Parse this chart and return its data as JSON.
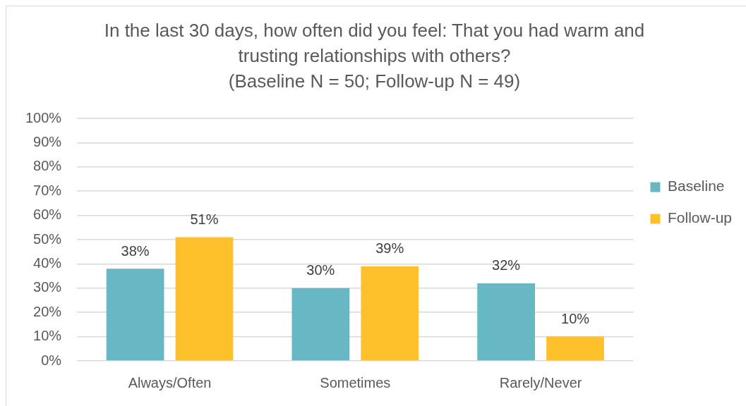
{
  "chart_data": {
    "type": "bar",
    "title": "In the last 30 days, how often did you feel: That you had warm and trusting relationships with others?",
    "subtitle": "(Baseline N = 50; Follow-up N = 49)",
    "categories": [
      "Always/Often",
      "Sometimes",
      "Rarely/Never"
    ],
    "series": [
      {
        "name": "Baseline",
        "color": "#67b7c4",
        "values": [
          38,
          30,
          32
        ],
        "value_labels": [
          "38%",
          "30%",
          "32%"
        ]
      },
      {
        "name": "Follow-up",
        "color": "#fec12b",
        "values": [
          51,
          39,
          10
        ],
        "value_labels": [
          "51%",
          "39%",
          "10%"
        ]
      }
    ],
    "ylim": [
      0,
      100
    ],
    "yticks": [
      {
        "value": 0,
        "label": "0%"
      },
      {
        "value": 10,
        "label": "10%"
      },
      {
        "value": 20,
        "label": "20%"
      },
      {
        "value": 30,
        "label": "30%"
      },
      {
        "value": 40,
        "label": "40%"
      },
      {
        "value": 50,
        "label": "50%"
      },
      {
        "value": 60,
        "label": "60%"
      },
      {
        "value": 70,
        "label": "70%"
      },
      {
        "value": 80,
        "label": "80%"
      },
      {
        "value": 90,
        "label": "90%"
      },
      {
        "value": 100,
        "label": "100%"
      }
    ],
    "grid": "y",
    "legend": "right"
  }
}
